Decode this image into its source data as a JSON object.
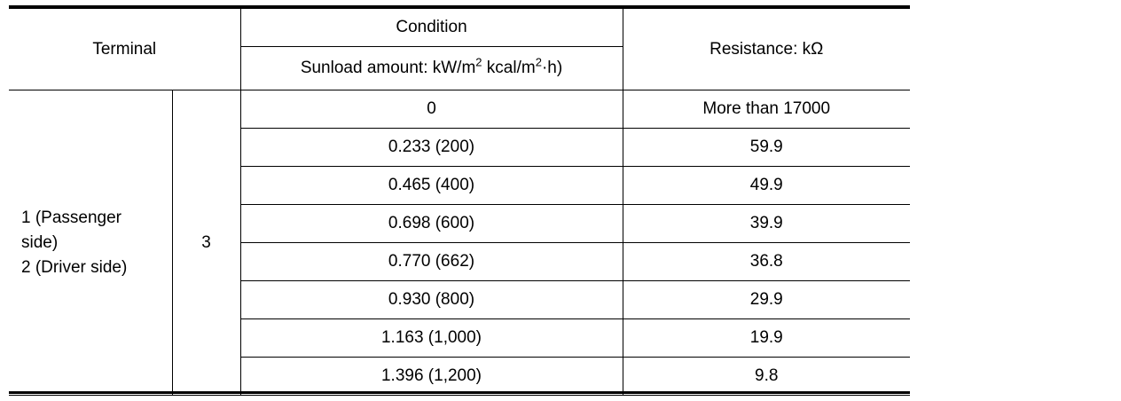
{
  "header": {
    "terminal": "Terminal",
    "condition": "Condition",
    "sunload_prefix": "Sunload amount: kW/m",
    "sunload_sup1": "2",
    "sunload_mid": " kcal/m",
    "sunload_sup2": "2",
    "sunload_suffix": "·h)",
    "resistance": "Resistance: kΩ"
  },
  "terminal": {
    "line1": "1 (Passenger",
    "line2": "side)",
    "line3": "2 (Driver side)",
    "ground": "3"
  },
  "rows": [
    {
      "sunload": "0",
      "resistance": "More than 17000"
    },
    {
      "sunload": "0.233 (200)",
      "resistance": "59.9"
    },
    {
      "sunload": "0.465 (400)",
      "resistance": "49.9"
    },
    {
      "sunload": "0.698 (600)",
      "resistance": "39.9"
    },
    {
      "sunload": "0.770 (662)",
      "resistance": "36.8"
    },
    {
      "sunload": "0.930 (800)",
      "resistance": "29.9"
    },
    {
      "sunload": "1.163 (1,000)",
      "resistance": "19.9"
    },
    {
      "sunload": "1.396 (1,200)",
      "resistance": "9.8"
    }
  ]
}
